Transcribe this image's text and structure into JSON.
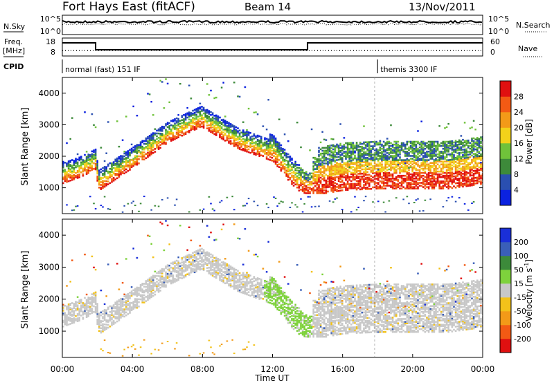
{
  "header": {
    "station": "Fort Hays East (fitACF)",
    "beam": "Beam 14",
    "date": "13/Nov/2011"
  },
  "upper_panels": {
    "nsky_label": "N.Sky",
    "nsearch_label": "N.Search",
    "noise_left_ticks": [
      "10^5",
      "10^0"
    ],
    "noise_right_ticks": [
      "10^5",
      "10^0"
    ],
    "freq_label": "Freq.",
    "freq_unit": "[MHz]",
    "freq_left_ticks": [
      "18",
      "8"
    ],
    "nave_label": "Nave",
    "nave_right_ticks": [
      "60",
      "0"
    ],
    "cpid_label": "CPID",
    "cpid_segments": [
      {
        "name": "normal (fast) 151 IF",
        "start_hour": 0
      },
      {
        "name": "themis 3300 IF",
        "start_hour": 18.0
      }
    ],
    "freq_steps": [
      {
        "start_hour": 0,
        "end_hour": 1.9,
        "level": "high"
      },
      {
        "start_hour": 1.9,
        "end_hour": 14.0,
        "level": "low"
      },
      {
        "start_hour": 14.0,
        "end_hour": 24,
        "level": "high"
      }
    ]
  },
  "chart_data": [
    {
      "type": "heatmap",
      "panel": "power",
      "ylabel": "Slant Range [km]",
      "yticks": [
        "1000",
        "2000",
        "3000",
        "4000"
      ],
      "ylim": [
        180,
        4500
      ],
      "xlim_hours": [
        0,
        24
      ],
      "colorbar_label": "Power [dB]",
      "colorbar_ticks": [
        "4",
        "8",
        "12",
        "16",
        "20",
        "24",
        "28"
      ],
      "colorbar_colors": [
        "#0b22e0",
        "#2a4fb0",
        "#3d8a3a",
        "#6fc23a",
        "#f2d21a",
        "#f29a18",
        "#f25a14",
        "#e01010"
      ],
      "echo_band": [
        {
          "hour": 0.0,
          "range_km": 1500
        },
        {
          "hour": 1.0,
          "range_km": 1700
        },
        {
          "hour": 1.9,
          "range_km": 1950
        },
        {
          "hour": 2.0,
          "range_km": 1250
        },
        {
          "hour": 4.0,
          "range_km": 2000
        },
        {
          "hour": 6.0,
          "range_km": 2800
        },
        {
          "hour": 7.9,
          "range_km": 3300
        },
        {
          "hour": 10.0,
          "range_km": 2600
        },
        {
          "hour": 12.0,
          "range_km": 2200
        },
        {
          "hour": 13.0,
          "range_km": 1500
        },
        {
          "hour": 14.0,
          "range_km": 1000
        },
        {
          "hour": 16.0,
          "range_km": 1200
        },
        {
          "hour": 18.0,
          "range_km": 1250
        },
        {
          "hour": 20.0,
          "range_km": 1250
        },
        {
          "hour": 22.0,
          "range_km": 1250
        },
        {
          "hour": 24.0,
          "range_km": 1400
        }
      ]
    },
    {
      "type": "heatmap",
      "panel": "velocity",
      "ylabel": "Slant Range [km]",
      "yticks": [
        "1000",
        "2000",
        "3000",
        "4000"
      ],
      "ylim": [
        180,
        4500
      ],
      "xlim_hours": [
        0,
        24
      ],
      "colorbar_label": "Velocity [m s",
      "colorbar_label_sup": "-1",
      "colorbar_label_end": "]",
      "colorbar_ticks": [
        "200",
        "100",
        "50",
        "15",
        "-15",
        "-50",
        "-100",
        "-200"
      ],
      "colorbar_colors": [
        "#1a2fd8",
        "#3a5fb8",
        "#3c8a3a",
        "#7ed23c",
        "#c8c8c8",
        "#f2c21a",
        "#f29a18",
        "#f25a14",
        "#e01010"
      ],
      "xlabel": "Time UT",
      "xticks": [
        "00:00",
        "04:00",
        "08:00",
        "12:00",
        "16:00",
        "20:00",
        "00:00"
      ]
    }
  ]
}
